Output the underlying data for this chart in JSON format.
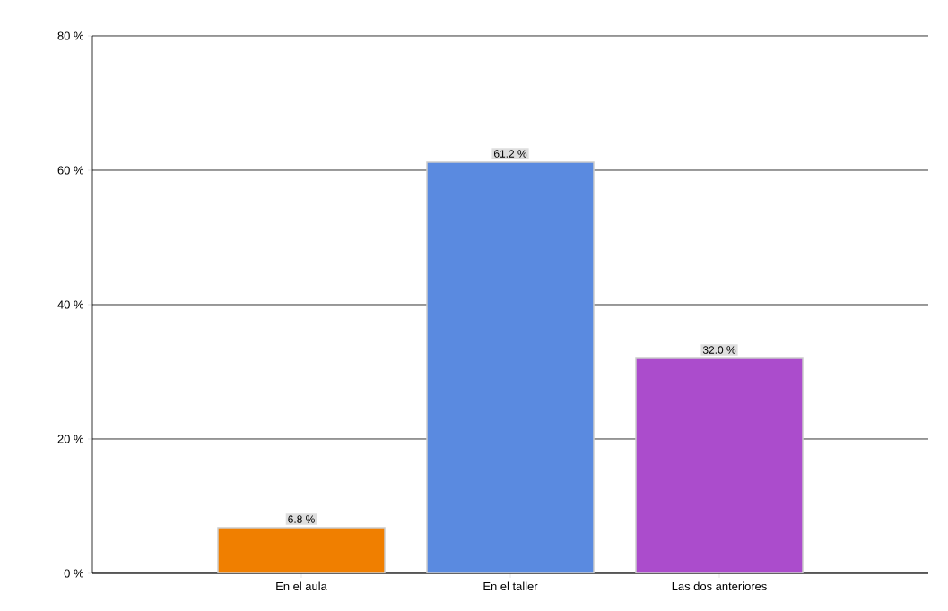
{
  "chart_data": {
    "type": "bar",
    "categories": [
      "En el aula",
      "En el taller",
      "Las dos anteriores"
    ],
    "values": [
      6.8,
      61.2,
      32.0
    ],
    "colors": [
      "#f07f00",
      "#5a8ae0",
      "#ab4ccc"
    ],
    "value_labels": [
      "6.8 %",
      "61.2 %",
      "32.0 %"
    ],
    "ylim": [
      0,
      80
    ],
    "yticks": [
      {
        "value": 0,
        "label": "0 %"
      },
      {
        "value": 20,
        "label": "20 %"
      },
      {
        "value": 40,
        "label": "40 %"
      },
      {
        "value": 60,
        "label": "60 %"
      },
      {
        "value": 80,
        "label": "80 %"
      }
    ],
    "grid": "y"
  }
}
